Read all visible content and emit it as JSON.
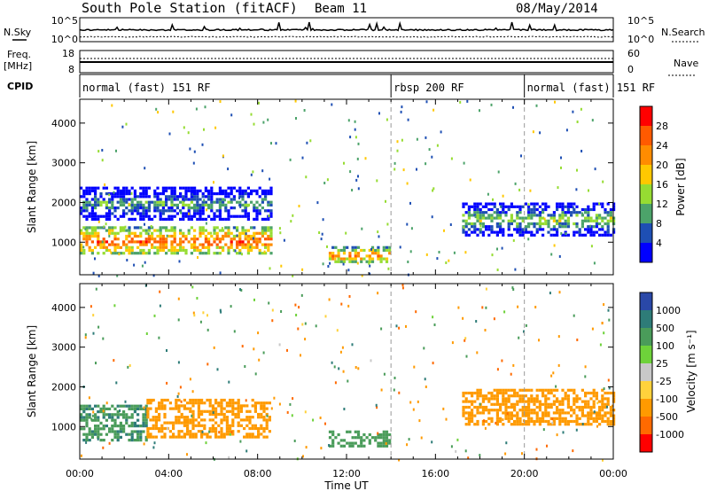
{
  "header": {
    "station": "South Pole Station (fitACF)",
    "beam": "Beam 11",
    "date": "08/May/2014"
  },
  "strips": {
    "nsky_label": "N.Sky",
    "nsky_ticks": [
      "10^5",
      "10^0"
    ],
    "nsearch_label": "N.Search",
    "nsearch_ticks": [
      "10^5",
      "10^0"
    ],
    "freq_label_1": "Freq.",
    "freq_label_2": "[MHz]",
    "freq_ticks": [
      "18",
      "8"
    ],
    "nave_label": "Nave",
    "nave_ticks": [
      "60",
      "0"
    ],
    "cpid_label": "CPID",
    "modes": [
      {
        "label": "normal (fast) 151 RF",
        "start_hour": 0,
        "end_hour": 14
      },
      {
        "label": "rbsp 200 RF",
        "start_hour": 14,
        "end_hour": 20
      },
      {
        "label": "normal (fast) 151 RF",
        "start_hour": 20,
        "end_hour": 24
      }
    ]
  },
  "axes": {
    "xlabel": "Time UT",
    "x_ticks": [
      "00:00",
      "04:00",
      "08:00",
      "12:00",
      "16:00",
      "20:00",
      "00:00"
    ],
    "ylabel": "Slant Range [km]",
    "y_ticks": [
      "1000",
      "2000",
      "3000",
      "4000"
    ]
  },
  "power_scale": {
    "label": "Power [dB]",
    "ticks": [
      "28",
      "24",
      "20",
      "16",
      "12",
      "8",
      "4"
    ],
    "colors": [
      "#ff0000",
      "#ff5a00",
      "#ff8c00",
      "#ffc800",
      "#96dc32",
      "#4ca36a",
      "#1e4fb4",
      "#0000ff"
    ]
  },
  "velocity_scale": {
    "label": "Velocity [m s⁻¹]",
    "ticks": [
      "1000",
      "500",
      "100",
      "25",
      "-25",
      "-100",
      "-500",
      "-1000"
    ],
    "colors": [
      "#2a48a8",
      "#2e7c78",
      "#4a9c5a",
      "#6ed23a",
      "#c8c8c8",
      "#ffd23c",
      "#ff9a00",
      "#ff6a00",
      "#ff0000"
    ]
  },
  "chart_data": [
    {
      "type": "heatmap",
      "title": "South Pole Station (fitACF) Beam 11 08/May/2014",
      "xlabel": "Time UT",
      "ylabel": "Slant Range [km]",
      "xlim": [
        0,
        24
      ],
      "ylim": [
        180,
        4600
      ],
      "z_label": "Power [dB]",
      "z_range": [
        0,
        32
      ],
      "regions": [
        {
          "t_start": 0,
          "t_end": 8.6,
          "range_center": 1050,
          "range_width": 700,
          "power": 26
        },
        {
          "t_start": 0,
          "t_end": 8.6,
          "range_center": 2000,
          "range_width": 800,
          "power": 11
        },
        {
          "t_start": 11.2,
          "t_end": 14,
          "range_center": 700,
          "range_width": 400,
          "power": 24
        },
        {
          "t_start": 17.2,
          "t_end": 24,
          "range_center": 1600,
          "range_width": 800,
          "power": 14
        }
      ]
    },
    {
      "type": "heatmap",
      "xlabel": "Time UT",
      "ylabel": "Slant Range [km]",
      "xlim": [
        0,
        24
      ],
      "ylim": [
        180,
        4600
      ],
      "z_label": "Velocity [m s⁻¹]",
      "z_range": [
        -1000,
        1000
      ],
      "regions": [
        {
          "t_start": 0,
          "t_end": 3,
          "range_center": 1100,
          "range_width": 900,
          "velocity": 400
        },
        {
          "t_start": 3,
          "t_end": 8.6,
          "range_center": 1200,
          "range_width": 1000,
          "velocity": -250
        },
        {
          "t_start": 11.2,
          "t_end": 14,
          "range_center": 700,
          "range_width": 400,
          "velocity": 300
        },
        {
          "t_start": 17.2,
          "t_end": 24,
          "range_center": 1500,
          "range_width": 900,
          "velocity": -250
        }
      ]
    }
  ]
}
